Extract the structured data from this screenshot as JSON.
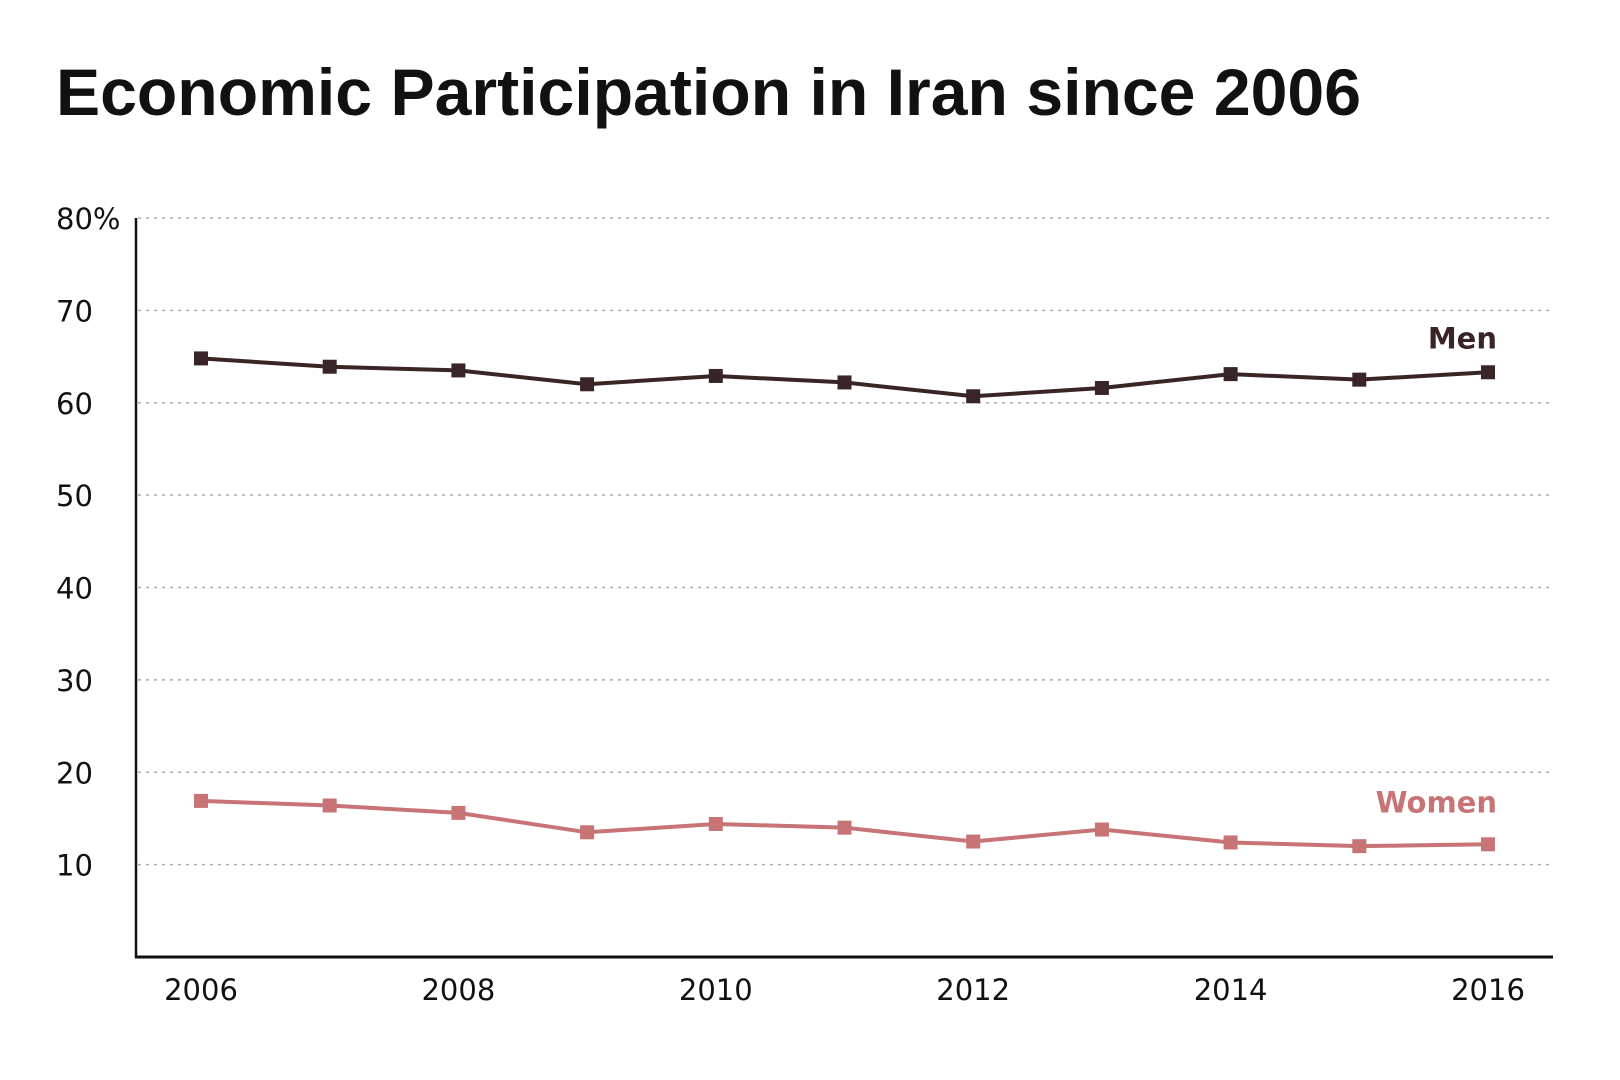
{
  "chart_data": {
    "type": "line",
    "title": "Economic Participation in Iran since 2006",
    "x": [
      2006,
      2007,
      2008,
      2009,
      2010,
      2011,
      2012,
      2013,
      2014,
      2015,
      2016
    ],
    "x_tick_labels": [
      "2006",
      "2008",
      "2010",
      "2012",
      "2014",
      "2016"
    ],
    "y_tick_labels": [
      "80%",
      "70",
      "60",
      "50",
      "40",
      "30",
      "20",
      "10"
    ],
    "ylim": [
      0,
      80
    ],
    "xlim": [
      2005.5,
      2016.5
    ],
    "grid": "horizontal dotted",
    "series": [
      {
        "name": "Men",
        "color": "#3a2526",
        "values": [
          64.8,
          63.9,
          63.5,
          62.0,
          62.9,
          62.2,
          60.7,
          61.6,
          63.1,
          62.5,
          63.3
        ]
      },
      {
        "name": "Women",
        "color": "#c87375",
        "values": [
          16.9,
          16.4,
          15.6,
          13.5,
          14.4,
          14.0,
          12.5,
          13.8,
          12.4,
          12.0,
          12.2
        ]
      }
    ]
  }
}
